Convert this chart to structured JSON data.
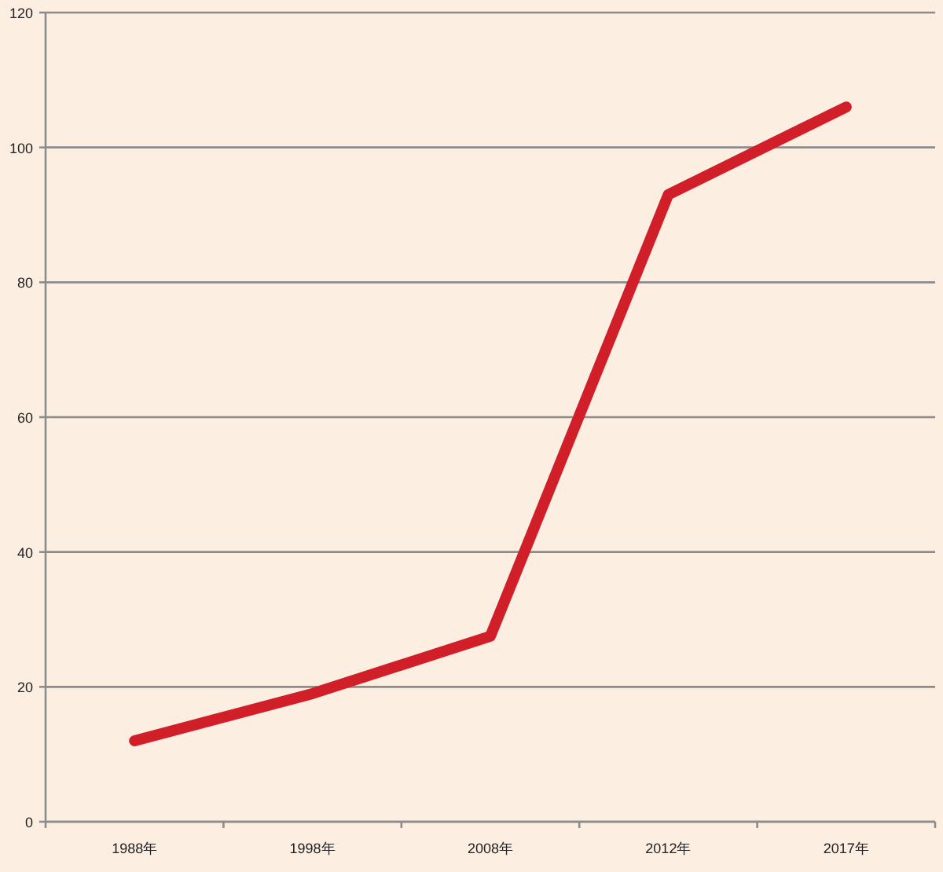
{
  "chart_data": {
    "type": "line",
    "categories": [
      "1988年",
      "1998年",
      "2008年",
      "2012年",
      "2017年"
    ],
    "series": [
      {
        "color": "#d11f2a",
        "values": [
          12,
          19,
          27.5,
          93,
          106
        ]
      }
    ],
    "ylim": [
      0,
      120
    ],
    "yticks": [
      0,
      20,
      40,
      60,
      80,
      100,
      120
    ],
    "grid": "y"
  }
}
